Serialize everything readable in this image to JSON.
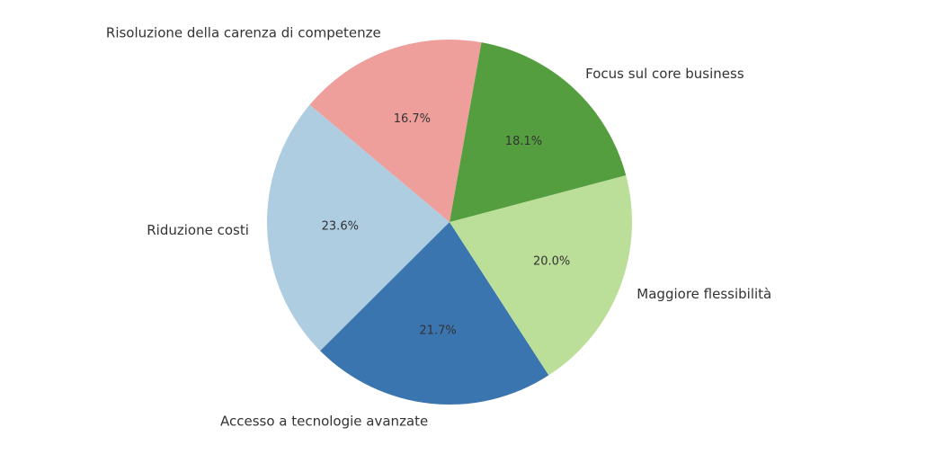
{
  "chart_data": {
    "type": "pie",
    "categories": [
      "Riduzione costi",
      "Accesso a tecnologie avanzate",
      "Maggiore flessibilità",
      "Focus sul core business",
      "Risoluzione della carenza di competenze"
    ],
    "values": [
      23.6,
      21.7,
      20.0,
      18.1,
      16.7
    ],
    "value_labels": [
      "23.6%",
      "21.7%",
      "20.0%",
      "18.1%",
      "16.7%"
    ],
    "colors": [
      "#aecde1",
      "#3b75af",
      "#bbdf98",
      "#559e3f",
      "#ee9f9c"
    ]
  }
}
